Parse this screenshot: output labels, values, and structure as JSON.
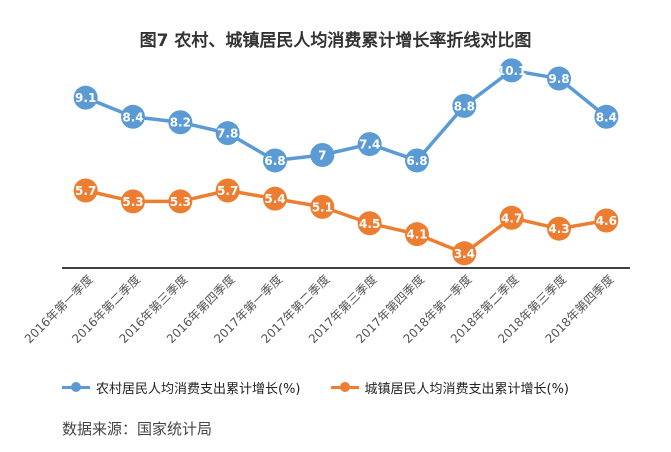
{
  "title": "图7  农村、城镇居民人均消费累计增长率折线对比图",
  "source": "数据来源：国家统计局",
  "chart_data": {
    "type": "line",
    "title": "图7  农村、城镇居民人均消费累计增长率折线对比图",
    "xlabel": "",
    "ylabel": "",
    "ylim": [
      2.5,
      10.5
    ],
    "grid": false,
    "legend_position": "bottom",
    "categories": [
      "2016年第一季度",
      "2016年第二季度",
      "2016年第三季度",
      "2016年第四季度",
      "2017年第一季度",
      "2017年第二季度",
      "2017年第三季度",
      "2017年第四季度",
      "2018年第一季度",
      "2018年第二季度",
      "2018年第三季度",
      "2018年第四季度"
    ],
    "series": [
      {
        "name": "农村居民人均消费支出累计增长(%)",
        "color": "#5B9BD5",
        "values": [
          9.1,
          8.4,
          8.2,
          7.8,
          6.8,
          7,
          7.4,
          6.8,
          8.8,
          10.1,
          9.8,
          8.4
        ]
      },
      {
        "name": "城镇居民人均消费支出累计增长(%)",
        "color": "#ED7D31",
        "values": [
          5.7,
          5.3,
          5.3,
          5.7,
          5.4,
          5.1,
          4.5,
          4.1,
          3.4,
          4.7,
          4.3,
          4.6
        ]
      }
    ]
  }
}
